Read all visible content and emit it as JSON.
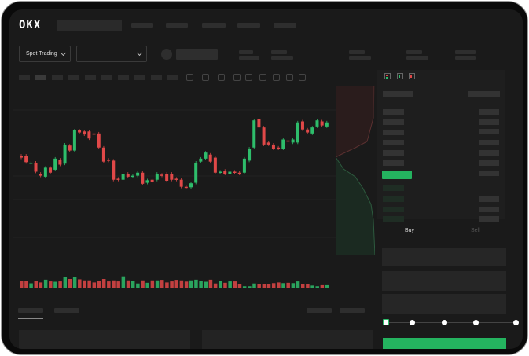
{
  "header": {
    "logo": "OKX"
  },
  "market": {
    "mode_label": "Spot Trading"
  },
  "trade": {
    "tabs": [
      {
        "label": "Buy",
        "active": true
      },
      {
        "label": "Sell",
        "active": false
      }
    ]
  },
  "colors": {
    "up": "#2ebd6b",
    "down": "#e04848",
    "background": "#1a1a1a",
    "accent": "#24b35f"
  },
  "icons": [
    "chevron-down-icon",
    "orderbook-both-icon",
    "orderbook-bids-icon",
    "orderbook-asks-icon"
  ],
  "slider": {
    "value_percent": 0,
    "stops": [
      0,
      25,
      50,
      75,
      100
    ]
  },
  "chart_data": {
    "type": "candlestick",
    "title": "",
    "xlabel": "",
    "ylabel": "",
    "candles": [
      [
        50,
        48
      ],
      [
        50,
        43.5
      ],
      [
        42.5,
        43
      ],
      [
        43,
        34
      ],
      [
        32,
        30
      ],
      [
        29,
        38
      ],
      [
        38,
        33
      ],
      [
        36,
        47
      ],
      [
        46,
        41
      ],
      [
        42,
        61
      ],
      [
        60,
        55
      ],
      [
        55,
        75
      ],
      [
        75,
        73
      ],
      [
        74,
        71
      ],
      [
        74,
        67
      ],
      [
        72,
        71
      ],
      [
        72,
        58
      ],
      [
        58,
        44
      ],
      [
        46,
        45
      ],
      [
        45,
        26
      ],
      [
        27,
        26
      ],
      [
        26,
        32
      ],
      [
        32,
        29
      ],
      [
        29,
        30
      ],
      [
        30,
        33
      ],
      [
        33,
        22
      ],
      [
        23,
        25.5
      ],
      [
        26,
        24
      ],
      [
        26,
        32
      ],
      [
        31,
        30
      ],
      [
        32,
        25
      ],
      [
        32,
        26
      ],
      [
        27,
        26
      ],
      [
        26,
        19
      ],
      [
        19,
        18
      ],
      [
        18.5,
        22.5
      ],
      [
        23,
        43
      ],
      [
        44,
        47
      ],
      [
        47,
        53
      ],
      [
        51,
        44
      ],
      [
        48,
        33
      ],
      [
        33,
        34
      ],
      [
        35,
        32
      ],
      [
        32,
        34
      ],
      [
        34,
        33.5
      ],
      [
        33,
        32
      ],
      [
        33,
        47
      ],
      [
        45,
        57
      ],
      [
        58,
        85
      ],
      [
        86,
        78
      ],
      [
        78,
        61
      ],
      [
        63,
        61
      ],
      [
        61,
        57
      ],
      [
        58,
        57
      ],
      [
        57,
        66
      ],
      [
        65,
        64
      ],
      [
        63,
        66
      ],
      [
        63,
        83
      ],
      [
        84,
        76
      ],
      [
        76,
        73
      ],
      [
        72,
        78
      ],
      [
        79,
        85
      ],
      [
        84,
        80
      ],
      [
        79,
        83
      ]
    ],
    "volumes": [
      38,
      40,
      25,
      40,
      30,
      46,
      36,
      34,
      36,
      60,
      50,
      60,
      48,
      42,
      42,
      30,
      38,
      50,
      36,
      42,
      36,
      65,
      42,
      40,
      24,
      42,
      28,
      42,
      42,
      45,
      30,
      36,
      45,
      42,
      35,
      42,
      46,
      40,
      34,
      46,
      24,
      38,
      28,
      36,
      36,
      22,
      8,
      8,
      24,
      22,
      22,
      20,
      26,
      30,
      26,
      28,
      26,
      36,
      22,
      22,
      12,
      8,
      14,
      14
    ]
  }
}
